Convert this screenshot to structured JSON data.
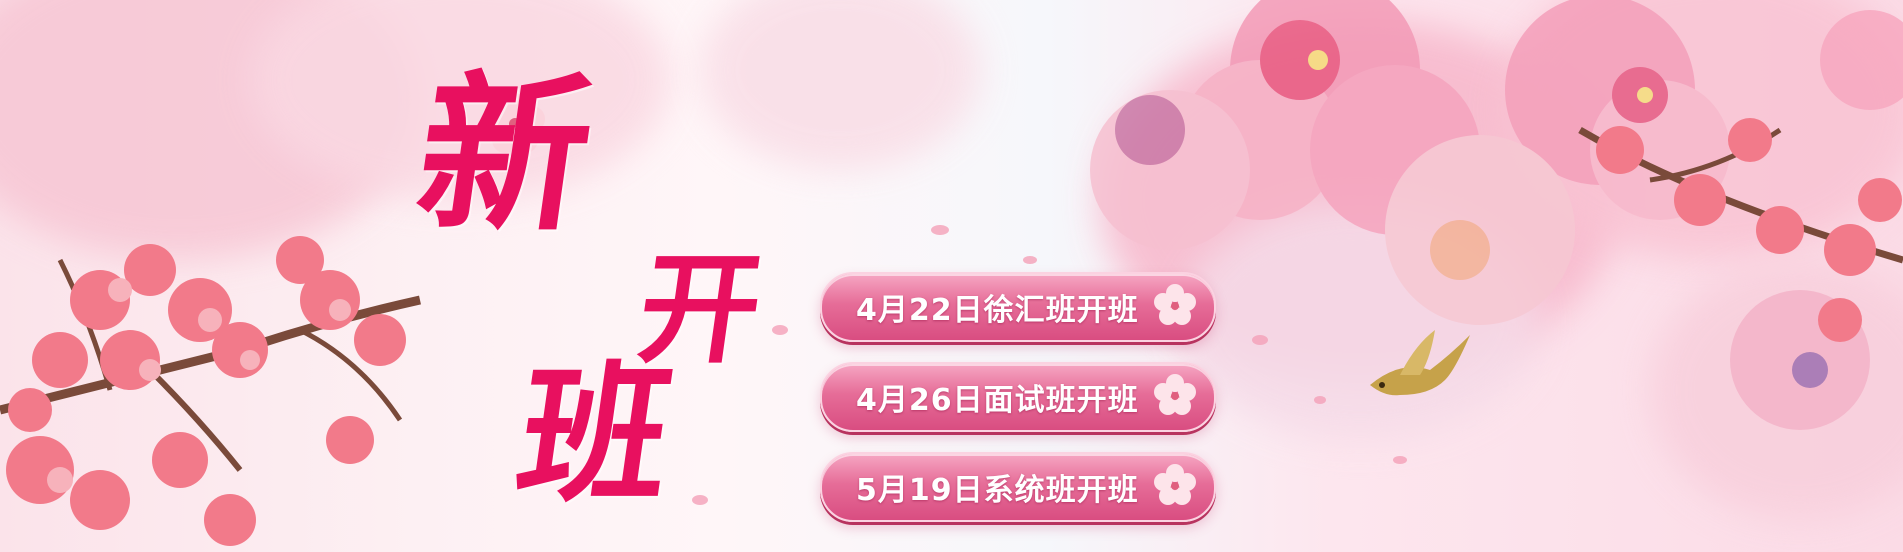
{
  "headline": {
    "char1": "新",
    "char2": "开",
    "char3": "班"
  },
  "schedule": [
    {
      "label": "4月22日徐汇班开班"
    },
    {
      "label": "4月26日面试班开班"
    },
    {
      "label": "5月19日系统班开班"
    }
  ],
  "colors": {
    "accent": "#e8105f",
    "pill": "#e66d98",
    "blossom": "#f27a8a",
    "branch": "#7a4a3a"
  },
  "icons": [
    "cherry-blossom-icon",
    "bird-icon"
  ]
}
